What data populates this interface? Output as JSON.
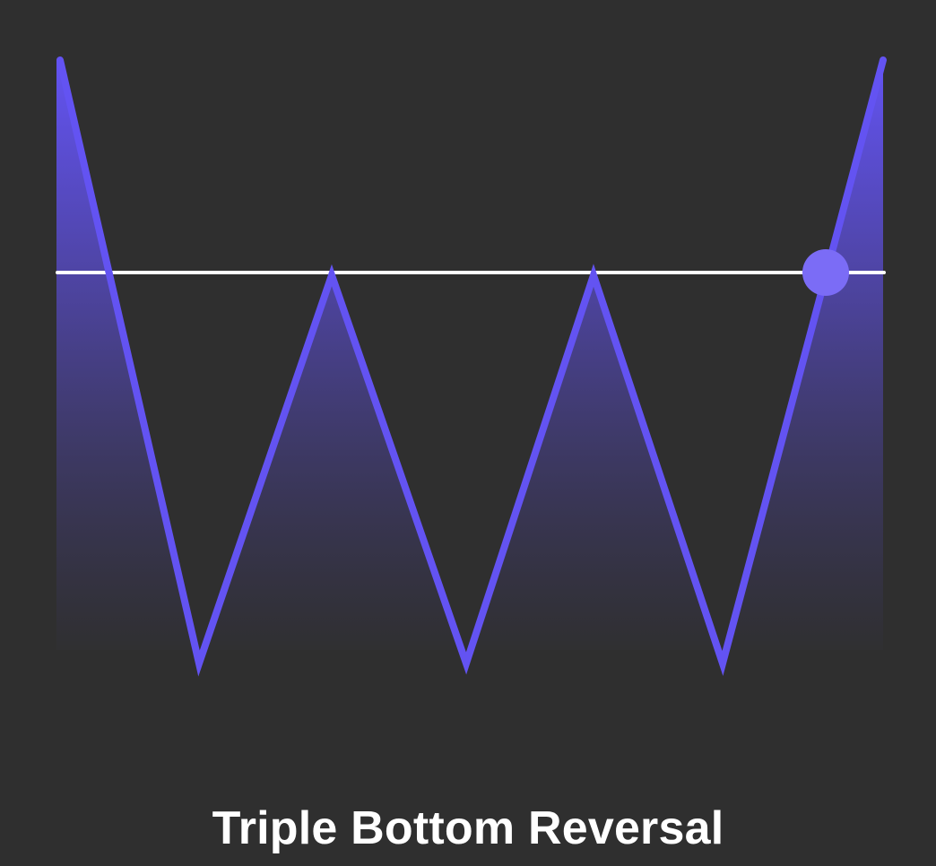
{
  "title": "Triple Bottom Reversal",
  "colors": {
    "background": "#2f2f2f",
    "line": "#6353f2",
    "neckline": "#ffffff",
    "breakout_marker": "#7b6cf6",
    "fill_top": "#6353f2",
    "fill_bottom": "#2f2f2f"
  },
  "pattern": {
    "sequence": [
      "start-high",
      "bottom-1",
      "peak-1",
      "bottom-2",
      "peak-2",
      "bottom-3",
      "end-high"
    ],
    "bottoms_count": 3,
    "neckline": "resistance",
    "breakout": "upward"
  }
}
